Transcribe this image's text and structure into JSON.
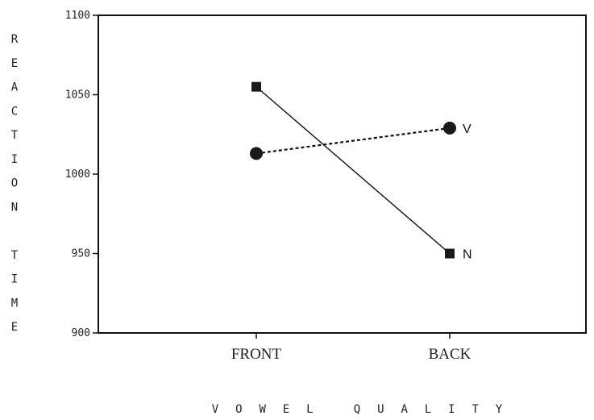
{
  "chart_data": {
    "type": "line",
    "categories": [
      "FRONT",
      "BACK"
    ],
    "series": [
      {
        "name": "V",
        "values": [
          1013,
          1029
        ],
        "marker": "circle",
        "line_style": "dashed"
      },
      {
        "name": "N",
        "values": [
          1055,
          950
        ],
        "marker": "square",
        "line_style": "solid"
      }
    ],
    "xlabel": "VOWEL QUALITY",
    "ylabel": "REACTION TIME",
    "ylim": [
      900,
      1100
    ],
    "yticks": [
      900,
      950,
      1000,
      1050,
      1100
    ],
    "grid": false,
    "legend": "inline-right"
  }
}
